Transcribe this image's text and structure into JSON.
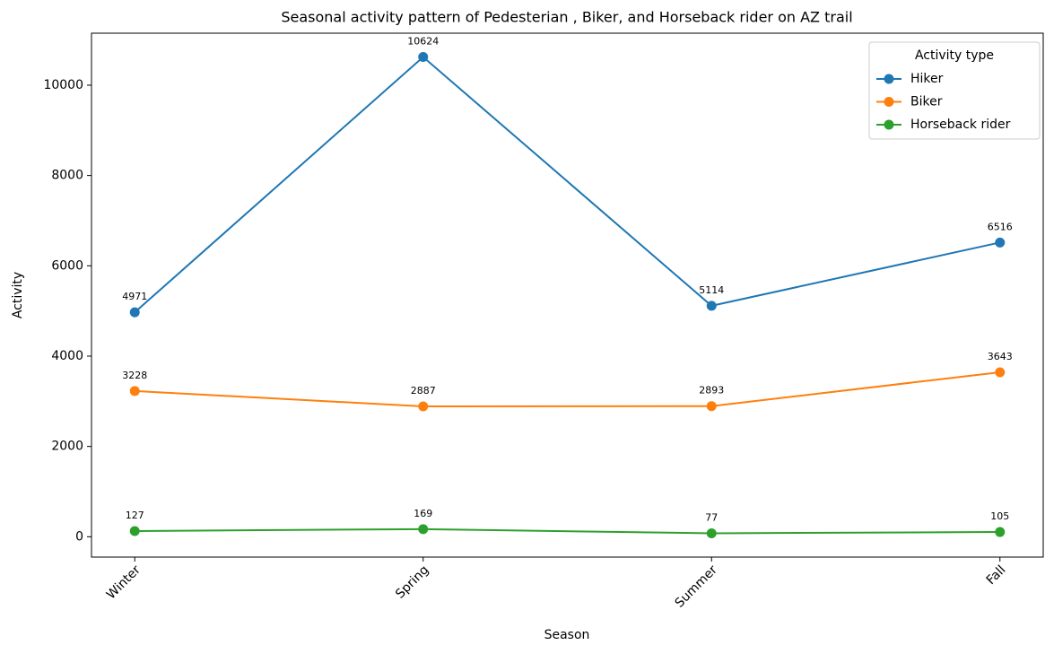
{
  "chart_data": {
    "type": "line",
    "title": "Seasonal activity pattern of Pedesterian , Biker, and Horseback rider on AZ trail",
    "x_label": "Season",
    "y_label": "Activity",
    "categories": [
      "Winter",
      "Spring",
      "Summer",
      "Fall"
    ],
    "series": [
      {
        "name": "Hiker",
        "color": "#1f77b4",
        "values": [
          4971,
          10624,
          5114,
          6516
        ]
      },
      {
        "name": "Biker",
        "color": "#ff7f0e",
        "values": [
          3228,
          2887,
          2893,
          3643
        ]
      },
      {
        "name": "Horseback rider",
        "color": "#2ca02c",
        "values": [
          127,
          169,
          77,
          105
        ]
      }
    ],
    "ylim": [
      -450,
      11151
    ],
    "yticks": [
      0,
      2000,
      4000,
      6000,
      8000,
      10000
    ],
    "grid": false,
    "legend_title": "Activity type",
    "legend_loc": "upper right",
    "markers": true
  }
}
